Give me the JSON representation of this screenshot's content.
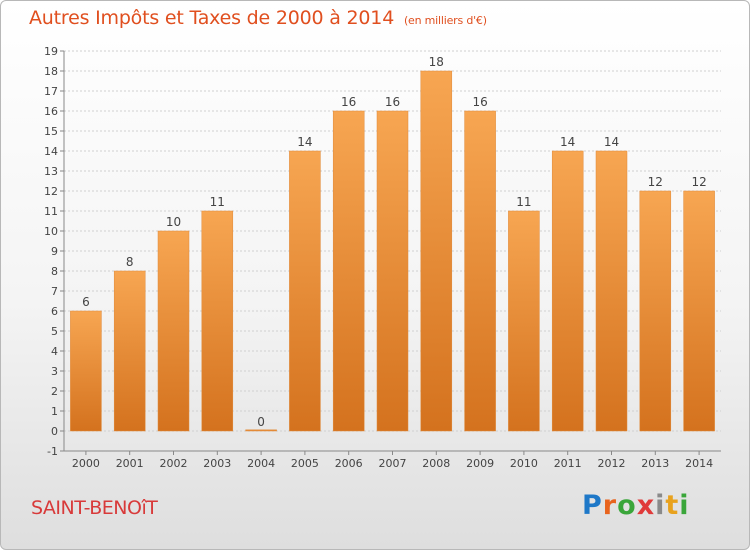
{
  "title": {
    "main": "Autres Impôts et Taxes de 2000 à 2014",
    "unit": "(en milliers d'€)"
  },
  "commune": "SAINT-BENOîT",
  "logo": {
    "text": "Proxiti",
    "letter_colors": [
      "#1e78c8",
      "#e8641e",
      "#3aa63a",
      "#e03a3a",
      "#8a8a8a",
      "#e8a21e",
      "#3aa63a"
    ]
  },
  "colors": {
    "bar_top": "#f7a652",
    "bar_bottom": "#d4721e",
    "title": "#e04f1f",
    "commune": "#d83a3a"
  },
  "chart_data": {
    "type": "bar",
    "categories": [
      "2000",
      "2001",
      "2002",
      "2003",
      "2004",
      "2005",
      "2006",
      "2007",
      "2008",
      "2009",
      "2010",
      "2011",
      "2012",
      "2013",
      "2014"
    ],
    "values": [
      6,
      8,
      10,
      11,
      0,
      14,
      16,
      16,
      18,
      16,
      11,
      14,
      14,
      12,
      12
    ],
    "data_labels": [
      "6",
      "8",
      "10",
      "11",
      "0",
      "14",
      "16",
      "16",
      "18",
      "16",
      "11",
      "14",
      "14",
      "12",
      "12"
    ],
    "y_ticks": [
      -1,
      0,
      1,
      2,
      3,
      4,
      5,
      6,
      7,
      8,
      9,
      10,
      11,
      12,
      13,
      14,
      15,
      16,
      17,
      18,
      19
    ],
    "ylim": [
      -1,
      19
    ],
    "grid": true,
    "legend": "none"
  }
}
